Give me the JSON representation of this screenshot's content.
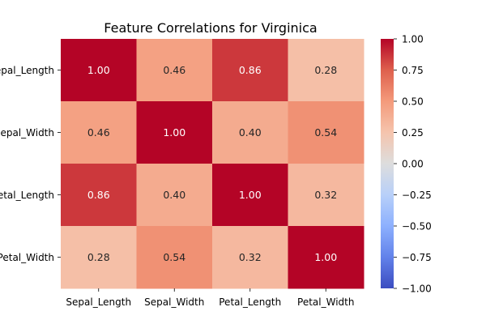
{
  "chart_data": {
    "type": "heatmap",
    "title": "Feature Correlations for Virginica",
    "x_categories": [
      "Sepal_Length",
      "Sepal_Width",
      "Petal_Length",
      "Petal_Width"
    ],
    "y_categories": [
      "Sepal_Length",
      "Sepal_Width",
      "Petal_Length",
      "Petal_Width"
    ],
    "values": [
      [
        1.0,
        0.46,
        0.86,
        0.28
      ],
      [
        0.46,
        1.0,
        0.4,
        0.54
      ],
      [
        0.86,
        0.4,
        1.0,
        0.32
      ],
      [
        0.28,
        0.54,
        0.32,
        1.0
      ]
    ],
    "cell_labels": [
      [
        "1.00",
        "0.46",
        "0.86",
        "0.28"
      ],
      [
        "0.46",
        "1.00",
        "0.40",
        "0.54"
      ],
      [
        "0.86",
        "0.40",
        "1.00",
        "0.32"
      ],
      [
        "0.28",
        "0.54",
        "0.32",
        "1.00"
      ]
    ],
    "colormap": "coolwarm",
    "color_range": [
      -1,
      1
    ],
    "colorbar_ticks": [
      "1.00",
      "0.75",
      "0.50",
      "0.25",
      "0.00",
      "−0.25",
      "−0.50",
      "−0.75",
      "−1.00"
    ],
    "colorbar_tick_values": [
      1.0,
      0.75,
      0.5,
      0.25,
      0.0,
      -0.25,
      -0.5,
      -0.75,
      -1.0
    ],
    "legend": "colorbar-right",
    "grid": false
  }
}
